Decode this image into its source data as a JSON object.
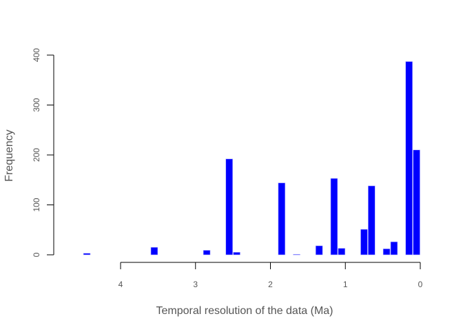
{
  "chart_data": {
    "type": "bar",
    "title": "",
    "xlabel": "Temporal resolution of the data (Ma)",
    "ylabel": "Frequency",
    "xlim": [
      4.6,
      0
    ],
    "x_reversed": true,
    "ylim": [
      0,
      400
    ],
    "x_ticks": [
      4,
      3,
      2,
      1,
      0
    ],
    "y_ticks": [
      0,
      100,
      200,
      300,
      400
    ],
    "grid": false,
    "bar_color": "#0000FF",
    "bar_border_color": "#AAAAFF",
    "bin_width": 0.1,
    "bins": [
      {
        "x_start": 0.0,
        "x_end": 0.1,
        "value": 210
      },
      {
        "x_start": 0.1,
        "x_end": 0.2,
        "value": 387
      },
      {
        "x_start": 0.3,
        "x_end": 0.4,
        "value": 26
      },
      {
        "x_start": 0.4,
        "x_end": 0.5,
        "value": 12
      },
      {
        "x_start": 0.6,
        "x_end": 0.7,
        "value": 138
      },
      {
        "x_start": 0.7,
        "x_end": 0.8,
        "value": 51
      },
      {
        "x_start": 1.0,
        "x_end": 1.1,
        "value": 13
      },
      {
        "x_start": 1.1,
        "x_end": 1.2,
        "value": 153
      },
      {
        "x_start": 1.3,
        "x_end": 1.4,
        "value": 18
      },
      {
        "x_start": 1.6,
        "x_end": 1.7,
        "value": 1
      },
      {
        "x_start": 1.8,
        "x_end": 1.9,
        "value": 144
      },
      {
        "x_start": 2.4,
        "x_end": 2.5,
        "value": 5
      },
      {
        "x_start": 2.5,
        "x_end": 2.6,
        "value": 192
      },
      {
        "x_start": 2.8,
        "x_end": 2.9,
        "value": 9
      },
      {
        "x_start": 3.5,
        "x_end": 3.6,
        "value": 15
      },
      {
        "x_start": 4.4,
        "x_end": 4.5,
        "value": 3
      }
    ]
  }
}
